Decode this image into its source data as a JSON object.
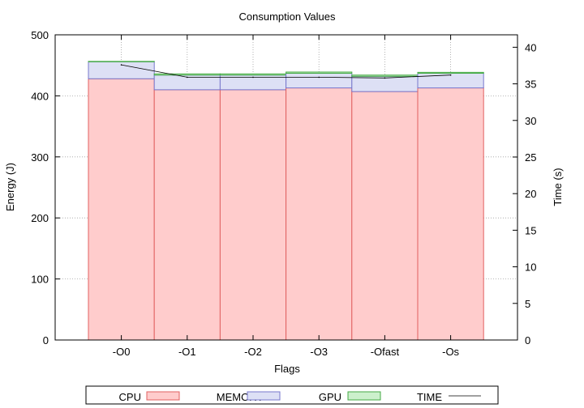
{
  "chart_data": {
    "type": "bar",
    "stacked": true,
    "title": "Consumption Values",
    "xlabel": "Flags",
    "ylabel": "Energy (J)",
    "y2label": "Time (s)",
    "categories": [
      "-O0",
      "-O1",
      "-O2",
      "-O3",
      "-Ofast",
      "-Os"
    ],
    "ylim": [
      0,
      500
    ],
    "y2lim": [
      0,
      41.7
    ],
    "yticks": [
      0,
      100,
      200,
      300,
      400,
      500
    ],
    "y2ticks": [
      0,
      5,
      10,
      15,
      20,
      25,
      30,
      35,
      40
    ],
    "grid": true,
    "legend_position": "bottom",
    "series": [
      {
        "name": "CPU",
        "color": "#ffcccc",
        "edge": "#e06060",
        "values": [
          428,
          410,
          410,
          413,
          407,
          413
        ]
      },
      {
        "name": "MEMORY",
        "color": "#dde0f5",
        "edge": "#7777cc",
        "values": [
          28,
          24,
          24,
          24,
          25,
          24
        ]
      },
      {
        "name": "GPU",
        "color": "#ccf0cc",
        "edge": "#44aa44",
        "values": [
          0.5,
          2,
          2,
          2,
          2,
          1.5
        ]
      }
    ],
    "line_series": {
      "name": "TIME",
      "color": "#000000",
      "axis": "y2",
      "values": [
        37.6,
        35.9,
        35.9,
        35.9,
        35.8,
        36.2
      ]
    }
  }
}
